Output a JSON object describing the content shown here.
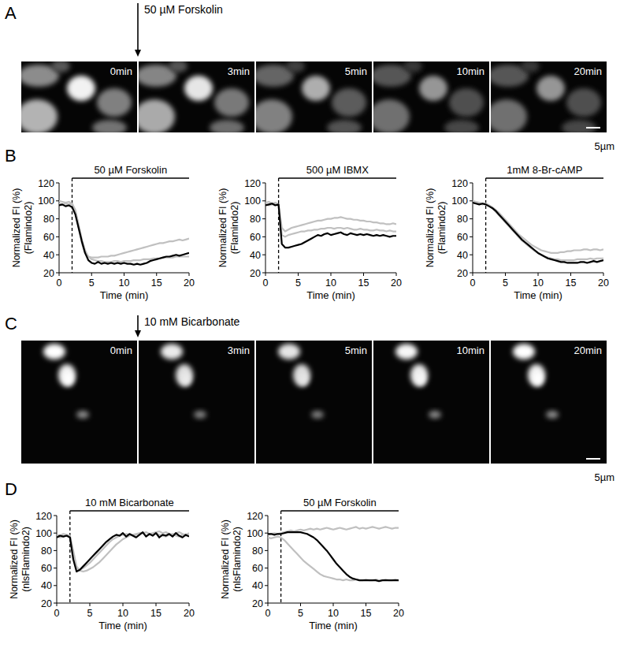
{
  "image_panels": [
    {
      "label": "A",
      "annotation": "50 µM Forskolin",
      "frames": [
        "0min",
        "3min",
        "5min",
        "10min",
        "20min"
      ],
      "scale_bar": "5µm"
    },
    {
      "label": "C",
      "annotation": "10 mM Bicarbonate",
      "frames": [
        "0min",
        "3min",
        "5min",
        "10min",
        "20min"
      ],
      "scale_bar": "5µm"
    }
  ],
  "chart_data": [
    {
      "type": "line",
      "panel": "B",
      "title": "50 µM Forskolin",
      "treatment_time": 2,
      "xlabel": "Time (min)",
      "ylabel": [
        "Normalized FI (%)",
        "(Flamindo2)"
      ],
      "xlim": [
        0,
        20
      ],
      "ylim": [
        20,
        120
      ],
      "xticks": [
        0,
        5,
        10,
        15,
        20
      ],
      "yticks": [
        20,
        40,
        60,
        80,
        100,
        120
      ],
      "x": [
        0,
        0.5,
        1,
        1.5,
        2,
        2.5,
        3,
        3.5,
        4,
        4.5,
        5,
        5.5,
        6,
        6.5,
        7,
        7.5,
        8,
        8.5,
        9,
        9.5,
        10,
        10.5,
        11,
        11.5,
        12,
        12.5,
        13,
        13.5,
        14,
        14.5,
        15,
        15.5,
        16,
        16.5,
        17,
        17.5,
        18,
        18.5,
        19,
        19.5,
        20
      ],
      "series": [
        {
          "color": "#c0c0c0",
          "values": [
            100,
            99,
            98,
            99,
            97,
            88,
            70,
            53,
            42,
            38,
            37,
            37,
            37,
            38,
            38,
            38,
            39,
            39,
            40,
            41,
            42,
            43,
            44,
            45,
            46,
            47,
            48,
            49,
            50,
            51,
            52,
            53,
            53,
            54,
            55,
            55,
            56,
            57,
            56,
            57,
            58
          ]
        },
        {
          "color": "#c0c0c0",
          "values": [
            97,
            96,
            97,
            96,
            97,
            90,
            74,
            57,
            45,
            38,
            35,
            34,
            33,
            33,
            32,
            32,
            32,
            33,
            33,
            32,
            33,
            33,
            33,
            34,
            34,
            34,
            35,
            35,
            35,
            36,
            36,
            36,
            37,
            37,
            37,
            37,
            38,
            38,
            38,
            38,
            38
          ]
        },
        {
          "color": "#000000",
          "values": [
            95,
            96,
            94,
            95,
            93,
            85,
            70,
            55,
            42,
            34,
            31,
            30,
            32,
            30,
            31,
            30,
            31,
            30,
            31,
            30,
            31,
            30,
            30,
            29,
            30,
            29,
            30,
            31,
            33,
            34,
            35,
            36,
            37,
            38,
            38,
            39,
            40,
            39,
            40,
            41,
            42
          ]
        }
      ]
    },
    {
      "type": "line",
      "title": "500 µM IBMX",
      "treatment_time": 2,
      "xlabel": "Time (min)",
      "ylabel": [
        "Normalized FI (%)",
        "(Flamindo2)"
      ],
      "xlim": [
        0,
        20
      ],
      "ylim": [
        20,
        120
      ],
      "xticks": [
        0,
        5,
        10,
        15,
        20
      ],
      "yticks": [
        20,
        40,
        60,
        80,
        100,
        120
      ],
      "x": [
        0,
        0.5,
        1,
        1.5,
        2,
        2.5,
        3,
        3.5,
        4,
        4.5,
        5,
        5.5,
        6,
        6.5,
        7,
        7.5,
        8,
        8.5,
        9,
        9.5,
        10,
        10.5,
        11,
        11.5,
        12,
        12.5,
        13,
        13.5,
        14,
        14.5,
        15,
        15.5,
        16,
        16.5,
        17,
        17.5,
        18,
        18.5,
        19,
        19.5,
        20
      ],
      "series": [
        {
          "color": "#c0c0c0",
          "values": [
            98,
            99,
            97,
            98,
            96,
            70,
            66,
            68,
            70,
            71,
            72,
            73,
            74,
            75,
            76,
            77,
            78,
            78,
            79,
            80,
            80,
            81,
            81,
            82,
            81,
            80,
            80,
            79,
            79,
            78,
            78,
            77,
            77,
            76,
            76,
            75,
            75,
            74,
            74,
            75,
            74
          ]
        },
        {
          "color": "#c0c0c0",
          "values": [
            96,
            95,
            96,
            97,
            95,
            62,
            60,
            62,
            63,
            64,
            65,
            66,
            66,
            67,
            67,
            68,
            68,
            69,
            69,
            70,
            70,
            69,
            70,
            70,
            69,
            70,
            69,
            68,
            68,
            69,
            68,
            68,
            67,
            67,
            68,
            67,
            67,
            66,
            67,
            66,
            66
          ]
        },
        {
          "color": "#000000",
          "values": [
            95,
            96,
            97,
            95,
            96,
            52,
            48,
            48,
            49,
            50,
            51,
            52,
            54,
            56,
            58,
            60,
            62,
            61,
            63,
            64,
            62,
            63,
            64,
            65,
            63,
            62,
            64,
            63,
            62,
            63,
            62,
            63,
            62,
            61,
            62,
            61,
            62,
            61,
            60,
            61,
            61
          ]
        }
      ]
    },
    {
      "type": "line",
      "title": "1mM 8-Br-cAMP",
      "treatment_time": 2,
      "xlabel": "Time (min)",
      "ylabel": [
        "Normalized FI (%)",
        "(Flamindo2)"
      ],
      "xlim": [
        0,
        20
      ],
      "ylim": [
        20,
        120
      ],
      "xticks": [
        0,
        5,
        10,
        15,
        20
      ],
      "yticks": [
        20,
        40,
        60,
        80,
        100,
        120
      ],
      "x": [
        0,
        0.5,
        1,
        1.5,
        2,
        2.5,
        3,
        3.5,
        4,
        4.5,
        5,
        5.5,
        6,
        6.5,
        7,
        7.5,
        8,
        8.5,
        9,
        9.5,
        10,
        10.5,
        11,
        11.5,
        12,
        12.5,
        13,
        13.5,
        14,
        14.5,
        15,
        15.5,
        16,
        16.5,
        17,
        17.5,
        18,
        18.5,
        19,
        19.5,
        20
      ],
      "series": [
        {
          "color": "#c0c0c0",
          "values": [
            100,
            99,
            98,
            97,
            97,
            95,
            93,
            90,
            87,
            83,
            79,
            75,
            71,
            67,
            63,
            60,
            57,
            54,
            51,
            49,
            47,
            45,
            44,
            43,
            42,
            42,
            42,
            43,
            43,
            44,
            44,
            45,
            45,
            45,
            46,
            46,
            45,
            46,
            46,
            45,
            46
          ]
        },
        {
          "color": "#c0c0c0",
          "values": [
            97,
            98,
            97,
            96,
            97,
            95,
            92,
            88,
            84,
            80,
            76,
            72,
            68,
            64,
            60,
            56,
            53,
            50,
            47,
            44,
            42,
            40,
            38,
            37,
            36,
            35,
            35,
            34,
            34,
            34,
            34,
            34,
            35,
            35,
            35,
            35,
            36,
            35,
            36,
            36,
            36
          ]
        },
        {
          "color": "#000000",
          "values": [
            98,
            97,
            96,
            97,
            96,
            94,
            92,
            89,
            85,
            81,
            77,
            73,
            69,
            65,
            61,
            57,
            54,
            51,
            48,
            45,
            42,
            40,
            38,
            36,
            35,
            34,
            33,
            32,
            32,
            31,
            31,
            31,
            31,
            32,
            32,
            31,
            32,
            33,
            32,
            33,
            34
          ]
        }
      ]
    },
    {
      "type": "line",
      "panel": "D",
      "title": "10 mM Bicarbonate",
      "treatment_time": 2,
      "xlabel": "Time (min)",
      "ylabel": [
        "Normalized FI (%)",
        "(nlsFlamindo2)"
      ],
      "xlim": [
        0,
        20
      ],
      "ylim": [
        20,
        120
      ],
      "xticks": [
        0,
        5,
        10,
        15,
        20
      ],
      "yticks": [
        20,
        40,
        60,
        80,
        100,
        120
      ],
      "x": [
        0,
        0.5,
        1,
        1.5,
        2,
        2.5,
        3,
        3.5,
        4,
        4.5,
        5,
        5.5,
        6,
        6.5,
        7,
        7.5,
        8,
        8.5,
        9,
        9.5,
        10,
        10.5,
        11,
        11.5,
        12,
        12.5,
        13,
        13.5,
        14,
        14.5,
        15,
        15.5,
        16,
        16.5,
        17,
        17.5,
        18,
        18.5,
        19,
        19.5,
        20
      ],
      "series": [
        {
          "color": "#c0c0c0",
          "values": [
            98,
            97,
            99,
            98,
            97,
            80,
            62,
            57,
            56,
            57,
            59,
            61,
            64,
            67,
            71,
            75,
            79,
            83,
            87,
            90,
            93,
            95,
            97,
            98,
            99,
            100,
            100,
            101,
            99,
            100,
            101,
            102,
            100,
            101,
            99,
            98,
            100,
            101,
            99,
            98,
            100
          ]
        },
        {
          "color": "#c0c0c0",
          "values": [
            96,
            95,
            96,
            97,
            96,
            75,
            60,
            58,
            60,
            63,
            66,
            70,
            74,
            78,
            82,
            86,
            90,
            93,
            95,
            97,
            98,
            99,
            98,
            97,
            98,
            99,
            100,
            97,
            98,
            99,
            100,
            98,
            97,
            96,
            98,
            99,
            97,
            96,
            98,
            97,
            98
          ]
        },
        {
          "color": "#000000",
          "values": [
            95,
            97,
            96,
            97,
            95,
            70,
            56,
            58,
            62,
            66,
            70,
            74,
            78,
            82,
            86,
            90,
            93,
            96,
            98,
            97,
            100,
            96,
            99,
            97,
            95,
            98,
            101,
            96,
            99,
            97,
            100,
            95,
            98,
            97,
            99,
            96,
            100,
            97,
            95,
            98,
            96
          ]
        }
      ]
    },
    {
      "type": "line",
      "title": "50 µM Forskolin",
      "treatment_time": 2,
      "xlabel": "Time (min)",
      "ylabel": [
        "Normalized FI (%)",
        "(nlsFlamindo2)"
      ],
      "xlim": [
        0,
        20
      ],
      "ylim": [
        20,
        120
      ],
      "xticks": [
        0,
        5,
        10,
        15,
        20
      ],
      "yticks": [
        20,
        40,
        60,
        80,
        100,
        120
      ],
      "x": [
        0,
        0.5,
        1,
        1.5,
        2,
        2.5,
        3,
        3.5,
        4,
        4.5,
        5,
        5.5,
        6,
        6.5,
        7,
        7.5,
        8,
        8.5,
        9,
        9.5,
        10,
        10.5,
        11,
        11.5,
        12,
        12.5,
        13,
        13.5,
        14,
        14.5,
        15,
        15.5,
        16,
        16.5,
        17,
        17.5,
        18,
        18.5,
        19,
        19.5,
        20
      ],
      "series": [
        {
          "color": "#c0c0c0",
          "values": [
            98,
            99,
            100,
            99,
            100,
            101,
            102,
            103,
            102,
            103,
            104,
            103,
            104,
            105,
            104,
            105,
            104,
            105,
            106,
            105,
            104,
            105,
            106,
            105,
            104,
            105,
            106,
            107,
            105,
            106,
            105,
            106,
            107,
            106,
            105,
            106,
            107,
            106,
            105,
            106,
            106
          ]
        },
        {
          "color": "#c0c0c0",
          "values": [
            95,
            94,
            95,
            96,
            95,
            92,
            88,
            84,
            80,
            76,
            72,
            68,
            65,
            62,
            59,
            56,
            53,
            51,
            50,
            49,
            48,
            47,
            47,
            46,
            47,
            46,
            46,
            47,
            46,
            46,
            47,
            46,
            46,
            47,
            46,
            46,
            47,
            46,
            46,
            47,
            46
          ]
        },
        {
          "color": "#000000",
          "values": [
            99,
            99,
            98,
            99,
            99,
            100,
            101,
            101,
            101,
            101,
            101,
            100,
            99,
            97,
            95,
            92,
            88,
            84,
            80,
            75,
            70,
            65,
            61,
            57,
            53,
            50,
            48,
            47,
            46,
            46,
            46,
            46,
            46,
            46,
            45,
            46,
            46,
            46,
            46,
            46,
            46
          ]
        }
      ]
    }
  ]
}
